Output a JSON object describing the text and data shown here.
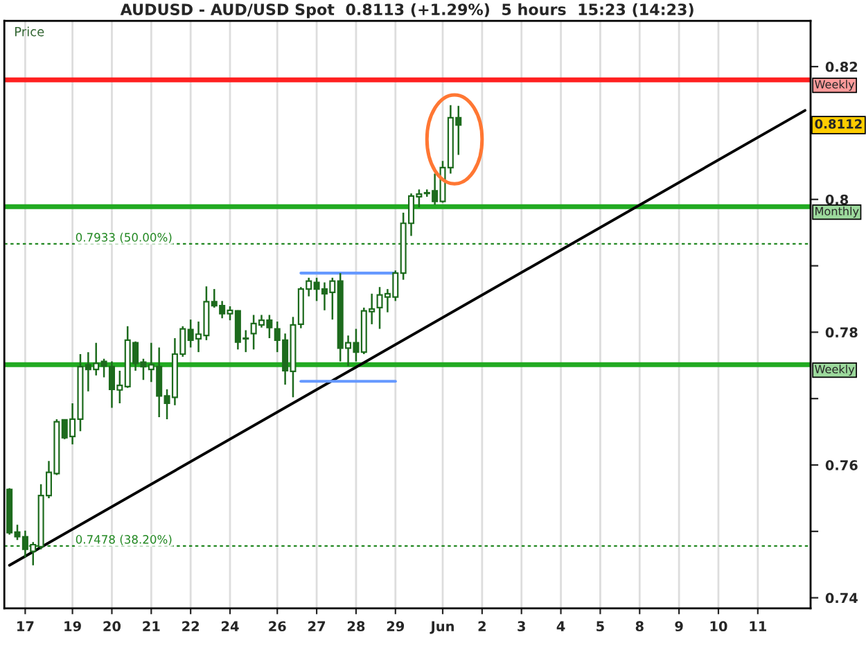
{
  "chart_data": {
    "type": "candlestick",
    "title": "AUDUSD - AUD/USD Spot  0.8113 (+1.29%)  5 hours  15:23 (14:23)",
    "annotations": [
      "Price",
      {
        "text": "0.8112",
        "y": 0.8112
      }
    ],
    "color": "#1d6b1d",
    "categories": [
      null,
      null,
      "17",
      null,
      null,
      null,
      null,
      null,
      "19",
      null,
      null,
      null,
      null,
      "20",
      null,
      null,
      null,
      null,
      "21",
      null,
      null,
      null,
      null,
      "22",
      null,
      null,
      null,
      null,
      "24",
      null,
      null,
      null,
      null,
      null,
      "26",
      null,
      null,
      null,
      null,
      "27",
      null,
      null,
      null,
      null,
      "28",
      null,
      null,
      null,
      null,
      "29",
      null,
      null,
      null,
      null,
      null,
      "Jun",
      null,
      null,
      null,
      null,
      "2",
      null,
      null,
      null,
      null,
      "3",
      null,
      null,
      null,
      null,
      "4",
      null,
      null,
      null,
      null,
      "5",
      null,
      null,
      null,
      null,
      "8",
      null,
      null,
      null,
      null,
      "9",
      null,
      null,
      null,
      null,
      "10",
      null,
      null,
      null,
      null,
      "11",
      null,
      null,
      null,
      null,
      null,
      null
    ],
    "ohlc": [
      [
        0.7563,
        0.7565,
        0.7495,
        0.7498
      ],
      [
        0.7499,
        0.751,
        0.7487,
        0.7492
      ],
      [
        0.7492,
        0.7501,
        0.7461,
        0.7473
      ],
      [
        0.747,
        0.7484,
        0.7449,
        0.748
      ],
      [
        0.7477,
        0.7571,
        0.7473,
        0.7554
      ],
      [
        0.7554,
        0.7606,
        0.755,
        0.7589
      ],
      [
        0.7587,
        0.7669,
        0.7585,
        0.7665
      ],
      [
        0.7668,
        0.7669,
        0.7639,
        0.7641
      ],
      [
        0.7643,
        0.7693,
        0.7631,
        0.7669
      ],
      [
        0.7669,
        0.7767,
        0.7651,
        0.7748
      ],
      [
        0.7751,
        0.777,
        0.7711,
        0.7744
      ],
      [
        0.7744,
        0.7784,
        0.7735,
        0.7753
      ],
      [
        0.7756,
        0.776,
        0.7732,
        0.7749
      ],
      [
        0.7748,
        0.7756,
        0.7686,
        0.7714
      ],
      [
        0.7713,
        0.7742,
        0.7693,
        0.772
      ],
      [
        0.7718,
        0.7809,
        0.7716,
        0.7788
      ],
      [
        0.7784,
        0.7786,
        0.7742,
        0.7753
      ],
      [
        0.7755,
        0.776,
        0.7728,
        0.7748
      ],
      [
        0.7744,
        0.7784,
        0.7725,
        0.7751
      ],
      [
        0.7748,
        0.7777,
        0.7672,
        0.7704
      ],
      [
        0.7704,
        0.7714,
        0.7669,
        0.7693
      ],
      [
        0.7702,
        0.7791,
        0.769,
        0.7767
      ],
      [
        0.7767,
        0.7809,
        0.7763,
        0.7805
      ],
      [
        0.7804,
        0.7819,
        0.7777,
        0.7788
      ],
      [
        0.779,
        0.7816,
        0.777,
        0.7797
      ],
      [
        0.7795,
        0.7869,
        0.7788,
        0.7846
      ],
      [
        0.7846,
        0.7865,
        0.7837,
        0.784
      ],
      [
        0.784,
        0.7847,
        0.7821,
        0.7828
      ],
      [
        0.7828,
        0.7839,
        0.7818,
        0.7833
      ],
      [
        0.7832,
        0.7833,
        0.7774,
        0.7785
      ],
      [
        0.779,
        0.7803,
        0.777,
        0.7791
      ],
      [
        0.7798,
        0.7826,
        0.7774,
        0.7813
      ],
      [
        0.7811,
        0.7826,
        0.7807,
        0.7818
      ],
      [
        0.7818,
        0.7826,
        0.7791,
        0.7807
      ],
      [
        0.7805,
        0.7816,
        0.777,
        0.7788
      ],
      [
        0.7788,
        0.7798,
        0.7721,
        0.7742
      ],
      [
        0.7741,
        0.7823,
        0.7702,
        0.7811
      ],
      [
        0.7812,
        0.7868,
        0.7806,
        0.7865
      ],
      [
        0.7865,
        0.7882,
        0.7854,
        0.7877
      ],
      [
        0.7875,
        0.7882,
        0.7847,
        0.7865
      ],
      [
        0.7865,
        0.7875,
        0.7833,
        0.7858
      ],
      [
        0.786,
        0.7882,
        0.7819,
        0.7877
      ],
      [
        0.7877,
        0.7889,
        0.7756,
        0.7776
      ],
      [
        0.7776,
        0.7795,
        0.7749,
        0.7784
      ],
      [
        0.7784,
        0.7805,
        0.7756,
        0.777
      ],
      [
        0.777,
        0.7837,
        0.7767,
        0.7832
      ],
      [
        0.7831,
        0.7858,
        0.7812,
        0.7835
      ],
      [
        0.7837,
        0.7868,
        0.7805,
        0.7856
      ],
      [
        0.7853,
        0.7865,
        0.783,
        0.7858
      ],
      [
        0.7853,
        0.7893,
        0.7847,
        0.7889
      ],
      [
        0.7889,
        0.798,
        0.7879,
        0.7964
      ],
      [
        0.7964,
        0.8009,
        0.7945,
        0.8005
      ],
      [
        0.8004,
        0.8015,
        0.7988,
        0.8008
      ],
      [
        0.8009,
        0.8015,
        0.8004,
        0.801
      ],
      [
        0.8013,
        0.8039,
        0.7992,
        0.7997
      ],
      [
        0.7997,
        0.8058,
        0.7995,
        0.8048
      ],
      [
        0.8048,
        0.8142,
        0.8039,
        0.8123
      ],
      [
        0.8123,
        0.8141,
        0.8067,
        0.8112
      ],
      null,
      null,
      null,
      null,
      null,
      null,
      null,
      null,
      null,
      null,
      null,
      null,
      null,
      null,
      null,
      null,
      null,
      null,
      null,
      null,
      null,
      null,
      null,
      null,
      null,
      null,
      null,
      null,
      null,
      null,
      null,
      null,
      null,
      null,
      null,
      null,
      null,
      null,
      null,
      null,
      null,
      null,
      null,
      null
    ],
    "series": [
      {
        "type": "line",
        "color": "#000000",
        "values": [
          0.7449,
          null,
          null,
          null,
          null,
          null,
          null,
          null,
          null,
          null,
          null,
          null,
          null,
          null,
          null,
          null,
          null,
          null,
          null,
          null,
          null,
          null,
          null,
          null,
          null,
          null,
          null,
          null,
          null,
          null,
          null,
          null,
          null,
          null,
          null,
          null,
          null,
          null,
          null,
          null,
          null,
          null,
          null,
          null,
          null,
          null,
          null,
          null,
          null,
          null,
          null,
          null,
          null,
          null,
          null,
          null,
          null,
          null,
          null,
          null,
          null,
          null,
          null,
          null,
          null,
          null,
          null,
          null,
          null,
          null,
          null,
          null,
          null,
          null,
          null,
          null,
          null,
          null,
          null,
          null,
          null,
          null,
          null,
          null,
          null,
          null,
          null,
          null,
          null,
          null,
          null,
          null,
          null,
          null,
          null,
          null,
          null,
          null,
          null,
          null,
          null,
          0.8134
        ]
      },
      {
        "type": "line",
        "color": "#6699ff",
        "values": [
          null,
          null,
          null,
          null,
          null,
          null,
          null,
          null,
          null,
          null,
          null,
          null,
          null,
          null,
          null,
          null,
          null,
          null,
          null,
          null,
          null,
          null,
          null,
          null,
          null,
          null,
          null,
          null,
          null,
          null,
          null,
          null,
          null,
          null,
          null,
          null,
          null,
          0.7889,
          null,
          null,
          null,
          null,
          null,
          null,
          null,
          null,
          null,
          null,
          null,
          0.7889,
          null,
          null,
          null,
          null,
          null,
          null,
          null,
          null,
          null,
          null,
          null,
          null,
          null,
          null,
          null,
          null,
          null,
          null,
          null,
          null,
          null,
          null,
          null,
          null,
          null,
          null,
          null,
          null,
          null,
          null,
          null,
          null,
          null,
          null,
          null,
          null,
          null,
          null,
          null,
          null,
          null,
          null,
          null,
          null,
          null,
          null,
          null,
          null,
          null,
          null,
          null,
          null
        ]
      },
      {
        "type": "line",
        "color": "#6699ff",
        "values": [
          null,
          null,
          null,
          null,
          null,
          null,
          null,
          null,
          null,
          null,
          null,
          null,
          null,
          null,
          null,
          null,
          null,
          null,
          null,
          null,
          null,
          null,
          null,
          null,
          null,
          null,
          null,
          null,
          null,
          null,
          null,
          null,
          null,
          null,
          null,
          null,
          null,
          0.7726,
          null,
          null,
          null,
          null,
          null,
          null,
          null,
          null,
          null,
          null,
          null,
          0.7726,
          null,
          null,
          null,
          null,
          null,
          null,
          null,
          null,
          null,
          null,
          null,
          null,
          null,
          null,
          null,
          null,
          null,
          null,
          null,
          null,
          null,
          null,
          null,
          null,
          null,
          null,
          null,
          null,
          null,
          null,
          null,
          null,
          null,
          null,
          null,
          null,
          null,
          null,
          null,
          null,
          null,
          null,
          null,
          null,
          null,
          null,
          null,
          null,
          null,
          null,
          null,
          null
        ]
      }
    ],
    "ref_lines": [
      {
        "axis": "y",
        "value": 0.818,
        "label": "Weekly",
        "color": "#ff2020",
        "line_style": "solid"
      },
      {
        "axis": "y",
        "value": 0.7989,
        "label": "Monthly",
        "color": "#22aa22",
        "line_style": "solid"
      },
      {
        "axis": "y",
        "value": 0.7751,
        "label": "Weekly",
        "color": "#22aa22",
        "line_style": "solid"
      },
      {
        "axis": "y",
        "value": 0.7933,
        "label": "0.7933 (50.00%)",
        "color": "#228822",
        "line_style": "dashed"
      },
      {
        "axis": "y",
        "value": 0.7478,
        "label": "0.7478 (38.20%)",
        "color": "#228822",
        "line_style": "dashed"
      }
    ],
    "ylim": [
      0.7384,
      0.8269
    ],
    "yticks": [
      {
        "value": 0.74,
        "label": "0.74"
      },
      {
        "value": 0.75,
        "label": null
      },
      {
        "value": 0.76,
        "label": "0.76"
      },
      {
        "value": 0.77,
        "label": null
      },
      {
        "value": 0.78,
        "label": "0.78"
      },
      {
        "value": 0.79,
        "label": null
      },
      {
        "value": 0.8,
        "label": "0.8"
      },
      {
        "value": 0.81,
        "label": null
      },
      {
        "value": 0.82,
        "label": "0.82"
      }
    ],
    "grid": "x"
  }
}
